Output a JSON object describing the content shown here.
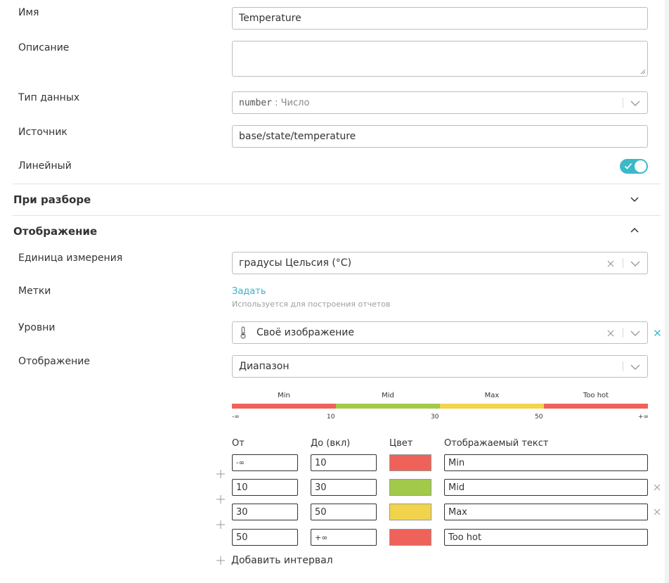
{
  "form": {
    "name_label": "Имя",
    "name_value": "Temperature",
    "description_label": "Описание",
    "description_value": "",
    "datatype_label": "Тип данных",
    "datatype_code": "number",
    "datatype_sep": " : ",
    "datatype_text": "Число",
    "source_label": "Источник",
    "source_value": "base/state/temperature",
    "linear_label": "Линейный",
    "linear_on": true
  },
  "sections": {
    "parsing_title": "При разборе",
    "display_title": "Отображение"
  },
  "display": {
    "unit_label": "Единица измерения",
    "unit_value": "градусы Цельсия (°C)",
    "tags_label": "Метки",
    "tags_link": "Задать",
    "tags_hint": "Используется для построения отчетов",
    "levels_label": "Уровни",
    "levels_value": "Своё изображение",
    "mode_label": "Отображение",
    "mode_value": "Диапазон"
  },
  "range_bar": {
    "segments": [
      {
        "label": "Min",
        "color": "#ef6259"
      },
      {
        "label": "Mid",
        "color": "#a3c94b"
      },
      {
        "label": "Max",
        "color": "#f1d44c"
      },
      {
        "label": "Too hot",
        "color": "#ef6259"
      }
    ],
    "ticks": [
      "-∞",
      "10",
      "30",
      "50",
      "+∞"
    ]
  },
  "intervals": {
    "headers": {
      "from": "От",
      "to": "До (вкл)",
      "color": "Цвет",
      "text": "Отображаемый текст"
    },
    "rows": [
      {
        "from": "-∞",
        "to": "10",
        "color": "#ef6259",
        "text": "Min"
      },
      {
        "from": "10",
        "to": "30",
        "color": "#a3c94b",
        "text": "Mid"
      },
      {
        "from": "30",
        "to": "50",
        "color": "#f1d44c",
        "text": "Max"
      },
      {
        "from": "50",
        "to": "+∞",
        "color": "#ef6259",
        "text": "Too hot"
      }
    ],
    "add_label": "Добавить интервал"
  },
  "colors": {
    "accent": "#3bb9c8",
    "link": "#3bb0c9",
    "border": "#b9bec4"
  }
}
